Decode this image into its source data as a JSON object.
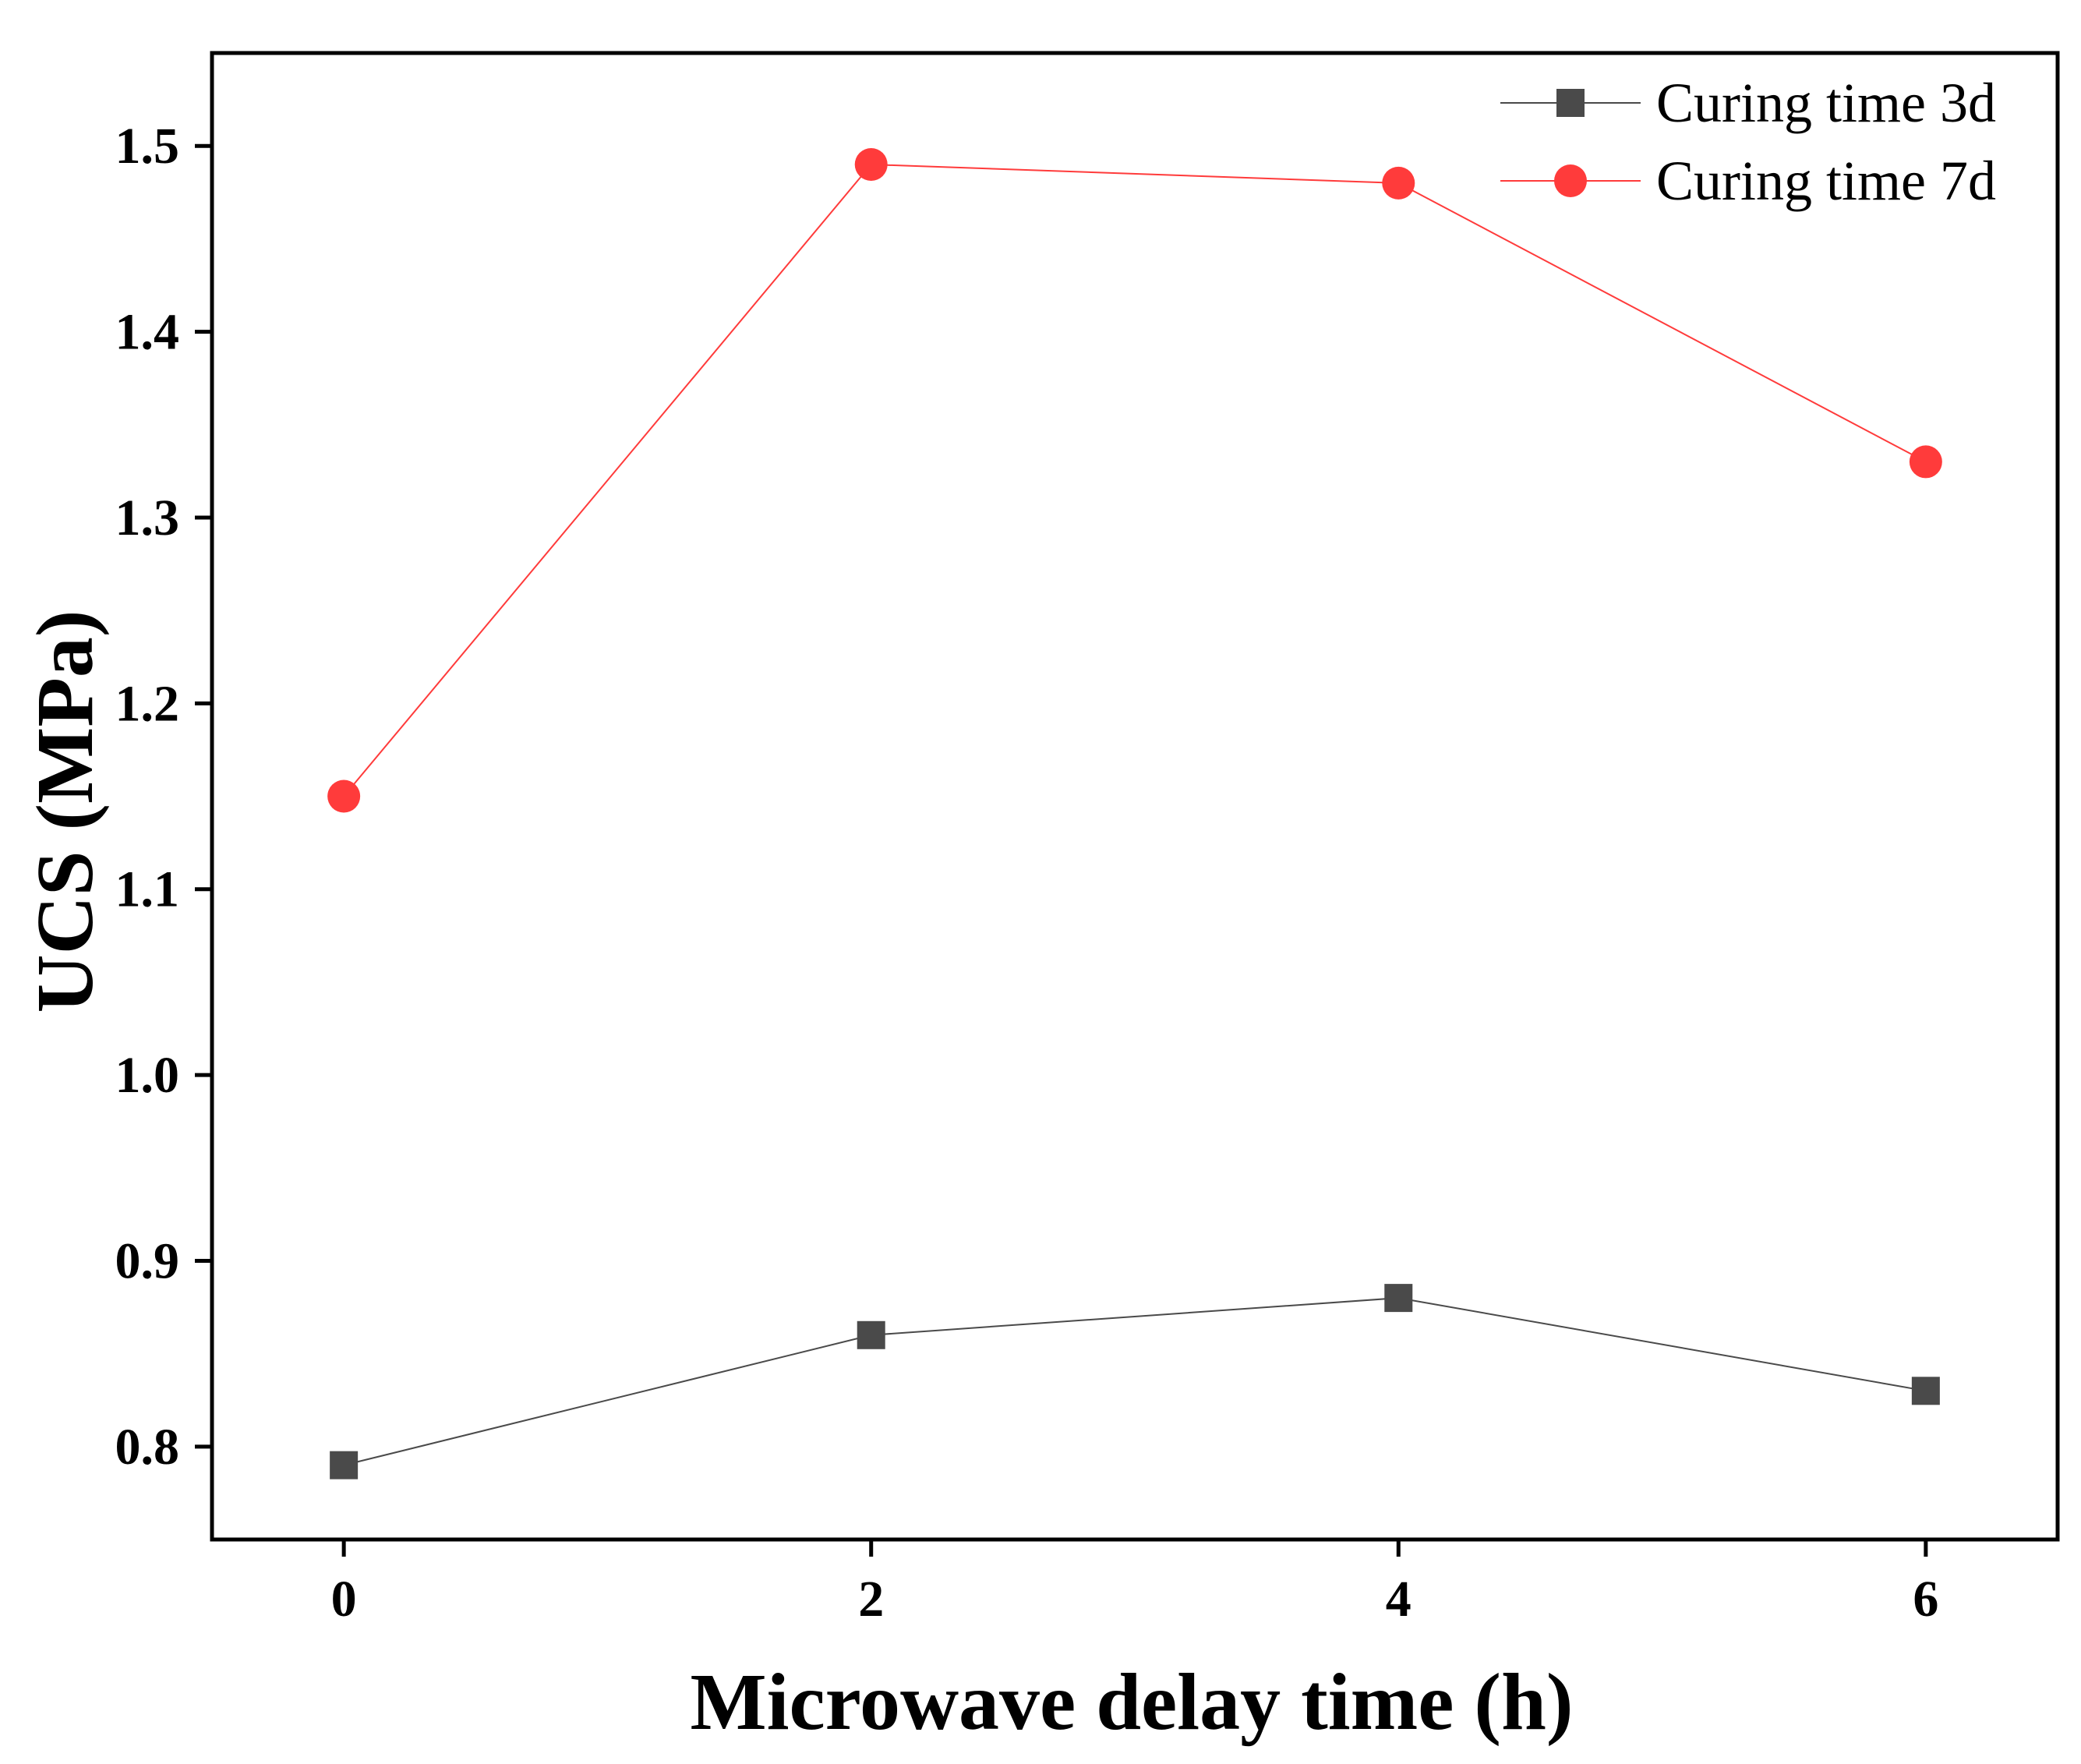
{
  "chart_data": {
    "type": "line",
    "title": "",
    "xlabel": "Microwave delay time (h)",
    "ylabel": "UCS (MPa)",
    "xlim": [
      -0.5,
      6.5
    ],
    "ylim": [
      0.75,
      1.55
    ],
    "x_ticks": [
      0,
      2,
      4,
      6
    ],
    "x_tick_labels": [
      "0",
      "2",
      "4",
      "6"
    ],
    "y_ticks": [
      0.8,
      0.9,
      1.0,
      1.1,
      1.2,
      1.3,
      1.4,
      1.5
    ],
    "y_tick_labels": [
      "0.8",
      "0.9",
      "1.0",
      "1.1",
      "1.2",
      "1.3",
      "1.4",
      "1.5"
    ],
    "grid": false,
    "legend_position": "top-right",
    "x": [
      0,
      2,
      4,
      6
    ],
    "series": [
      {
        "name": "Curing time 3d",
        "values": [
          0.79,
          0.86,
          0.88,
          0.83
        ],
        "color": "#4a4a4a",
        "marker": "square"
      },
      {
        "name": "Curing time 7d",
        "values": [
          1.15,
          1.49,
          1.48,
          1.33
        ],
        "color": "#ff3b3b",
        "marker": "circle"
      }
    ]
  }
}
